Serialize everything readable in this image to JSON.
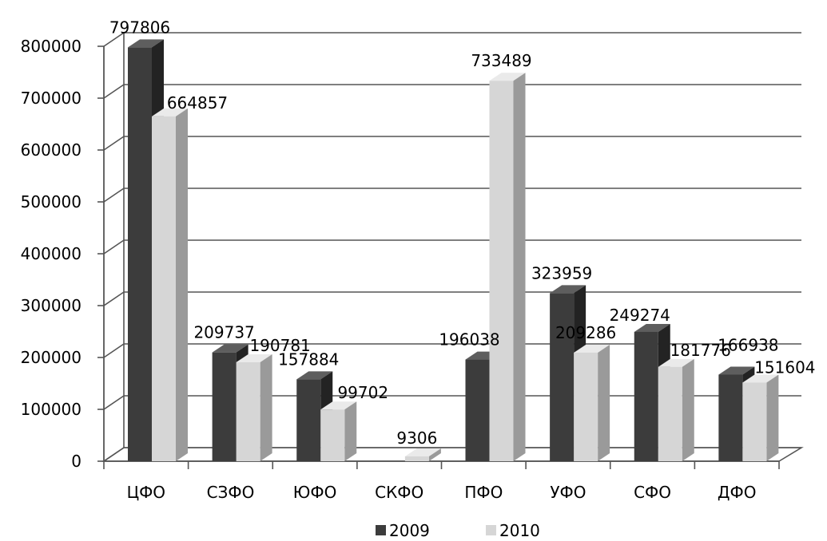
{
  "chart_data": {
    "type": "bar",
    "categories": [
      "ЦФО",
      "СЗФО",
      "ЮФО",
      "СКФО",
      "ПФО",
      "УФО",
      "СФО",
      "ДФО"
    ],
    "series": [
      {
        "name": "2009",
        "values": [
          797806,
          209737,
          157884,
          null,
          196038,
          323959,
          249274,
          166938
        ],
        "color": "#3c3c3c"
      },
      {
        "name": "2010",
        "values": [
          664857,
          190781,
          99702,
          9306,
          733489,
          209286,
          181776,
          151604
        ],
        "color": "#d6d6d6"
      }
    ],
    "data_labels": [
      [
        "797806",
        "209737",
        "157884",
        "",
        "196038",
        "323959",
        "249274",
        "166938"
      ],
      [
        "664857",
        "190781",
        "99702",
        "9306",
        "733489",
        "209286",
        "181776",
        "151604"
      ]
    ],
    "y_ticks": [
      "0",
      "100000",
      "200000",
      "300000",
      "400000",
      "500000",
      "600000",
      "700000",
      "800000"
    ],
    "ylim": [
      0,
      800000
    ],
    "grid": true,
    "legend_position": "bottom",
    "style": "3d-clustered-column"
  }
}
